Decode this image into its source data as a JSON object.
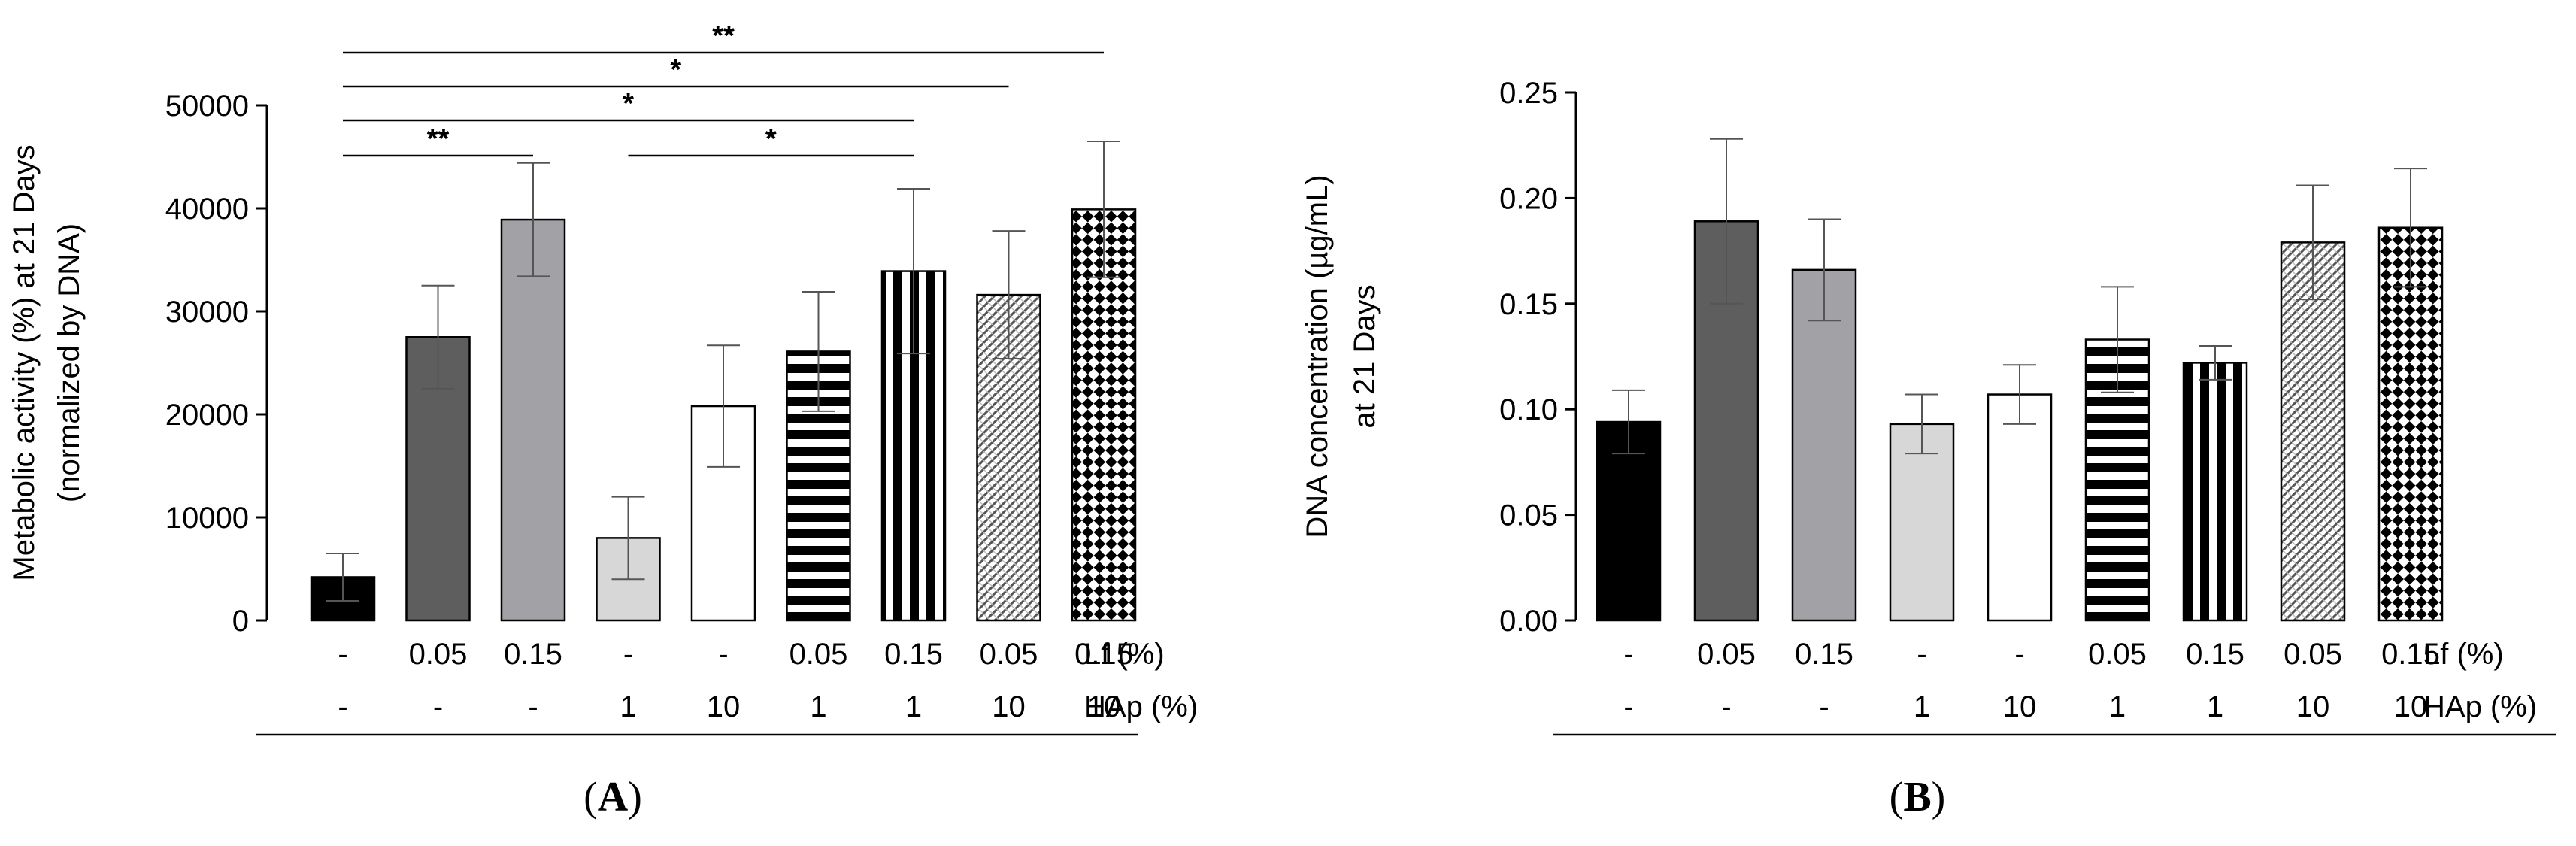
{
  "chart_data": [
    {
      "panel_label": "A",
      "type": "bar",
      "ylabel_lines": [
        "Metabolic activity (%) at 21 Days",
        "(normalized by DNA)"
      ],
      "ylim": [
        0,
        50000
      ],
      "yticks": [
        "0",
        "10000",
        "20000",
        "30000",
        "40000",
        "50000"
      ],
      "row_labels": [
        "Lf (%)",
        "HAp (%)"
      ],
      "lf_labels": [
        "-",
        "0.05",
        "0.15",
        "-",
        "-",
        "0.05",
        "0.15",
        "0.05",
        "0.15"
      ],
      "hap_labels": [
        "-",
        "-",
        "-",
        "1",
        "10",
        "1",
        "1",
        "10",
        "10"
      ],
      "values": [
        4200,
        27500,
        38900,
        8000,
        20800,
        26100,
        33900,
        31600,
        39900
      ],
      "errors": [
        2300,
        5000,
        5500,
        4000,
        5900,
        5800,
        8000,
        6200,
        6600
      ],
      "significance": [
        {
          "from": 0,
          "to": 2,
          "label": "**"
        },
        {
          "from": 3,
          "to": 6,
          "label": "*"
        },
        {
          "from": 0,
          "to": 6,
          "label": "*"
        },
        {
          "from": 0,
          "to": 7,
          "label": "*"
        },
        {
          "from": 0,
          "to": 8,
          "label": "**"
        }
      ]
    },
    {
      "panel_label": "B",
      "type": "bar",
      "ylabel_lines": [
        "DNA concentration (µg/mL)",
        "at 21 Days"
      ],
      "ylim": [
        0,
        0.25
      ],
      "yticks": [
        "0.00",
        "0.05",
        "0.10",
        "0.15",
        "0.20",
        "0.25"
      ],
      "row_labels": [
        "Lf (%)",
        "HAp (%)"
      ],
      "lf_labels": [
        "-",
        "0.05",
        "0.15",
        "-",
        "-",
        "0.05",
        "0.15",
        "0.05",
        "0.15"
      ],
      "hap_labels": [
        "-",
        "-",
        "-",
        "1",
        "10",
        "1",
        "1",
        "10",
        "10"
      ],
      "values": [
        0.094,
        0.189,
        0.166,
        0.093,
        0.107,
        0.133,
        0.122,
        0.179,
        0.186
      ],
      "errors": [
        0.015,
        0.039,
        0.024,
        0.014,
        0.014,
        0.025,
        0.008,
        0.027,
        0.028
      ],
      "significance": []
    }
  ],
  "bar_styles": [
    {
      "fill": "#000000",
      "pattern": "solid"
    },
    {
      "fill": "#5e5e5e",
      "pattern": "solid"
    },
    {
      "fill": "#a2a2a6",
      "pattern": "solid"
    },
    {
      "fill": "#d7d7d7",
      "pattern": "solid"
    },
    {
      "fill": "#ffffff",
      "pattern": "solid"
    },
    {
      "fill": "#ffffff",
      "pattern": "hstripes"
    },
    {
      "fill": "#ffffff",
      "pattern": "vstripes"
    },
    {
      "fill": "#ffffff",
      "pattern": "diag"
    },
    {
      "fill": "#ffffff",
      "pattern": "check"
    }
  ]
}
